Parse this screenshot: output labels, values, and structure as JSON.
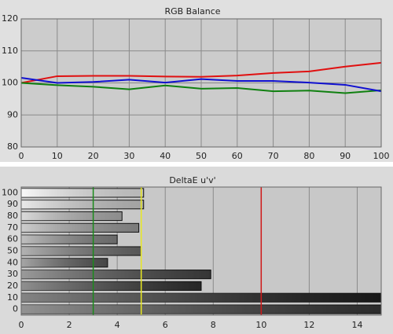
{
  "chart_data": [
    {
      "type": "line",
      "title": "RGB Balance",
      "x": [
        0,
        10,
        20,
        30,
        40,
        50,
        60,
        70,
        80,
        90,
        100
      ],
      "series": [
        {
          "name": "Red",
          "color": "#e01010",
          "values": [
            100,
            102.1,
            102.2,
            102.2,
            102.0,
            101.9,
            102.3,
            103.1,
            103.6,
            105.1,
            106.3
          ]
        },
        {
          "name": "Green",
          "color": "#108010",
          "values": [
            100.0,
            99.3,
            98.8,
            98.0,
            99.2,
            98.2,
            98.4,
            97.4,
            97.6,
            96.8,
            97.7
          ]
        },
        {
          "name": "Blue",
          "color": "#1010d0",
          "values": [
            101.6,
            100.0,
            100.3,
            101.0,
            100.1,
            101.2,
            100.6,
            100.6,
            100.1,
            99.4,
            97.4
          ]
        }
      ],
      "xlim": [
        0,
        100
      ],
      "xticks": [
        0,
        10,
        20,
        30,
        40,
        50,
        60,
        70,
        80,
        90,
        100
      ],
      "ylim": [
        80,
        120
      ],
      "yticks": [
        80,
        90,
        100,
        110,
        120
      ],
      "grid": true
    },
    {
      "type": "bar",
      "orientation": "horizontal",
      "title": "DeltaE u'v'",
      "categories": [
        100,
        90,
        80,
        70,
        60,
        50,
        40,
        30,
        20,
        10,
        0
      ],
      "values": [
        5.1,
        5.1,
        4.2,
        4.9,
        4.0,
        5.0,
        3.6,
        7.9,
        7.5,
        15,
        15
      ],
      "colors": [
        "#f4f4f4",
        "#d8d8d8",
        "#bcbcbc",
        "#a4a4a4",
        "#8c8c8c",
        "#747474",
        "#5e5e5e",
        "#484848",
        "#343434",
        "#202020",
        "#3a3a3a"
      ],
      "reference_lines": [
        {
          "value": 3,
          "color": "#1a8a1a"
        },
        {
          "value": 5,
          "color": "#e8e820"
        },
        {
          "value": 10,
          "color": "#d01818"
        }
      ],
      "xlim": [
        0,
        15
      ],
      "xticks": [
        0,
        2,
        4,
        6,
        8,
        10,
        12,
        14
      ],
      "grid": true
    }
  ]
}
